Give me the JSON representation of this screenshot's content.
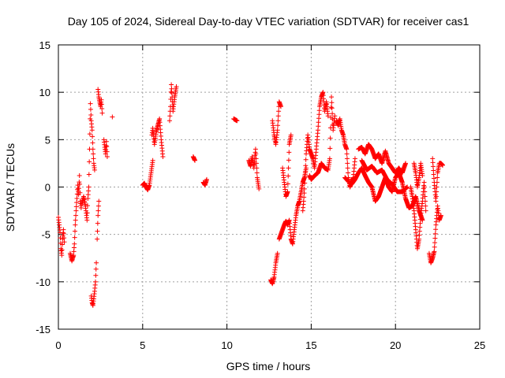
{
  "chart_data": {
    "type": "scatter",
    "title": "Day 105 of 2024, Sidereal Day-to-day VTEC variation (SDTVAR) for receiver cas1",
    "xlabel": "GPS time / hours",
    "ylabel": "SDTVAR / TECUs",
    "xlim": [
      0,
      25
    ],
    "ylim": [
      -15,
      15
    ],
    "xticks": [
      0,
      5,
      10,
      15,
      20,
      25
    ],
    "yticks": [
      -15,
      -10,
      -5,
      0,
      5,
      10,
      15
    ],
    "xtick_labels": [
      "0",
      "5",
      "10",
      "15",
      "20",
      "25"
    ],
    "ytick_labels": [
      "-15",
      "-10",
      "-5",
      "0",
      "5",
      "10",
      "15"
    ],
    "grid": true,
    "marker": "+",
    "color": "#ff0000",
    "segments": [
      [
        [
          0.0,
          -3.2
        ],
        [
          0.1,
          -4.8
        ],
        [
          0.15,
          -6.5
        ],
        [
          0.2,
          -7.2
        ],
        [
          0.25,
          -5.5
        ],
        [
          0.3,
          -4.5
        ],
        [
          0.35,
          -5.8
        ]
      ],
      [
        [
          0.7,
          -7.0
        ],
        [
          0.8,
          -7.8
        ],
        [
          0.9,
          -7.2
        ],
        [
          0.95,
          -6.0
        ],
        [
          1.0,
          -4.0
        ],
        [
          1.05,
          -2.5
        ],
        [
          1.1,
          -1.2
        ],
        [
          1.15,
          0.2
        ],
        [
          1.2,
          -0.8
        ],
        [
          1.25,
          1.2
        ],
        [
          1.3,
          -1.5
        ],
        [
          1.35,
          -2.2
        ]
      ],
      [
        [
          1.4,
          -1.8
        ],
        [
          1.5,
          -1.0
        ],
        [
          1.6,
          -2.0
        ],
        [
          1.7,
          -3.5
        ],
        [
          1.75,
          -1.2
        ],
        [
          1.8,
          0.0
        ],
        [
          1.85,
          4.0
        ],
        [
          1.9,
          8.8
        ],
        [
          1.95,
          7.0
        ],
        [
          2.0,
          6.0
        ],
        [
          2.05,
          4.0
        ],
        [
          2.1,
          2.5
        ],
        [
          2.15,
          1.8
        ]
      ],
      [
        [
          1.95,
          -11.5
        ],
        [
          2.0,
          -12.2
        ],
        [
          2.05,
          -12.5
        ],
        [
          2.1,
          -11.8
        ],
        [
          2.15,
          -11.0
        ],
        [
          2.2,
          -10.0
        ],
        [
          2.25,
          -8.0
        ]
      ],
      [
        [
          2.3,
          -5.5
        ],
        [
          2.35,
          -3.0
        ],
        [
          2.4,
          -1.5
        ]
      ],
      [
        [
          2.35,
          10.3
        ],
        [
          2.4,
          9.5
        ],
        [
          2.45,
          9.0
        ],
        [
          2.5,
          8.5
        ],
        [
          2.55,
          9.2
        ],
        [
          2.6,
          7.8
        ]
      ],
      [
        [
          2.7,
          5.0
        ],
        [
          2.75,
          4.2
        ],
        [
          2.8,
          3.5
        ],
        [
          2.85,
          4.8
        ],
        [
          2.9,
          3.2
        ]
      ],
      [
        [
          3.2,
          7.4
        ]
      ],
      [
        [
          5.0,
          0.2
        ],
        [
          5.1,
          0.4
        ],
        [
          5.2,
          0.0
        ],
        [
          5.3,
          -0.3
        ],
        [
          5.4,
          0.2
        ],
        [
          5.5,
          1.5
        ],
        [
          5.6,
          2.8
        ]
      ],
      [
        [
          5.55,
          5.5
        ],
        [
          5.6,
          6.2
        ],
        [
          5.7,
          4.5
        ],
        [
          5.8,
          5.8
        ],
        [
          5.9,
          6.5
        ],
        [
          6.0,
          7.2
        ],
        [
          6.1,
          5.0
        ],
        [
          6.2,
          3.2
        ]
      ],
      [
        [
          6.6,
          7.0
        ],
        [
          6.65,
          8.5
        ],
        [
          6.7,
          10.8
        ],
        [
          6.75,
          9.5
        ],
        [
          6.8,
          8.0
        ],
        [
          6.9,
          9.5
        ],
        [
          7.0,
          10.6
        ]
      ],
      [
        [
          8.0,
          3.2
        ],
        [
          8.1,
          2.8
        ]
      ],
      [
        [
          8.6,
          0.5
        ],
        [
          8.7,
          0.2
        ],
        [
          8.8,
          0.8
        ]
      ],
      [
        [
          10.4,
          7.2
        ],
        [
          10.6,
          7.0
        ]
      ],
      [
        [
          11.3,
          2.8
        ],
        [
          11.4,
          2.2
        ],
        [
          11.5,
          3.2
        ],
        [
          11.6,
          2.0
        ],
        [
          11.7,
          4.0
        ],
        [
          11.8,
          1.0
        ],
        [
          11.9,
          -0.2
        ]
      ],
      [
        [
          12.6,
          -9.8
        ],
        [
          12.7,
          -10.2
        ],
        [
          12.8,
          -9.5
        ],
        [
          12.9,
          -8.0
        ],
        [
          13.0,
          -7.0
        ]
      ],
      [
        [
          12.7,
          7.0
        ],
        [
          12.8,
          5.5
        ],
        [
          12.9,
          4.5
        ],
        [
          13.0,
          6.0
        ],
        [
          13.1,
          9.0
        ],
        [
          13.2,
          8.5
        ]
      ],
      [
        [
          13.1,
          -5.5
        ],
        [
          13.2,
          -5.0
        ],
        [
          13.3,
          -4.5
        ],
        [
          13.4,
          -4.0
        ],
        [
          13.5,
          -3.6
        ],
        [
          13.6,
          -4.0
        ],
        [
          13.7,
          -3.5
        ],
        [
          13.8,
          -5.5
        ],
        [
          13.9,
          -6.0
        ],
        [
          14.0,
          -4.5
        ],
        [
          14.1,
          -3.0
        ],
        [
          14.2,
          -2.0
        ],
        [
          14.3,
          -1.5
        ],
        [
          14.4,
          -0.5
        ],
        [
          14.5,
          0.5
        ],
        [
          14.6,
          1.0
        ],
        [
          14.7,
          2.0
        ]
      ],
      [
        [
          13.3,
          2.0
        ],
        [
          13.4,
          0.5
        ],
        [
          13.5,
          -1.0
        ],
        [
          13.6,
          -0.5
        ],
        [
          13.7,
          4.5
        ],
        [
          13.8,
          5.5
        ]
      ],
      [
        [
          14.5,
          -2.5
        ],
        [
          14.55,
          -1.5
        ],
        [
          14.6,
          -0.2
        ],
        [
          14.7,
          3.5
        ],
        [
          14.8,
          5.5
        ],
        [
          14.9,
          4.0
        ],
        [
          15.0,
          3.5
        ],
        [
          15.1,
          3.0
        ],
        [
          15.2,
          2.0
        ],
        [
          15.3,
          4.0
        ],
        [
          15.4,
          6.0
        ],
        [
          15.5,
          8.5
        ],
        [
          15.6,
          9.5
        ],
        [
          15.7,
          10.0
        ],
        [
          15.8,
          8.0
        ],
        [
          15.9,
          9.0
        ],
        [
          16.0,
          7.5
        ]
      ],
      [
        [
          14.9,
          1.2
        ],
        [
          15.0,
          0.8
        ],
        [
          15.2,
          1.2
        ],
        [
          15.4,
          1.5
        ],
        [
          15.6,
          2.5
        ],
        [
          15.8,
          2.0
        ],
        [
          16.0,
          1.8
        ],
        [
          16.1,
          3.0
        ],
        [
          16.2,
          9.5
        ],
        [
          16.3,
          6.0
        ],
        [
          16.4,
          7.5
        ]
      ],
      [
        [
          16.5,
          7.0
        ],
        [
          16.6,
          6.5
        ],
        [
          16.7,
          7.2
        ],
        [
          16.8,
          6.0
        ],
        [
          16.9,
          5.5
        ],
        [
          17.0,
          4.5
        ],
        [
          17.1,
          4.0
        ],
        [
          17.2,
          1.0
        ],
        [
          17.3,
          0.0
        ],
        [
          17.4,
          0.5
        ],
        [
          17.5,
          1.0
        ],
        [
          17.6,
          3.0
        ]
      ],
      [
        [
          17.0,
          1.0
        ],
        [
          17.2,
          0.6
        ],
        [
          17.4,
          0.3
        ],
        [
          17.6,
          0.8
        ],
        [
          17.8,
          1.5
        ],
        [
          18.0,
          2.0
        ],
        [
          18.2,
          1.2
        ],
        [
          18.4,
          0.5
        ],
        [
          18.6,
          0.0
        ],
        [
          18.8,
          -1.5
        ],
        [
          19.0,
          -1.0
        ],
        [
          19.2,
          0.0
        ],
        [
          19.4,
          1.0
        ],
        [
          19.6,
          0.0
        ],
        [
          19.8,
          -0.5
        ],
        [
          20.0,
          1.0
        ],
        [
          20.2,
          1.5
        ],
        [
          20.4,
          0.5
        ],
        [
          20.6,
          -1.2
        ],
        [
          20.8,
          -2.2
        ],
        [
          21.0,
          -2.0
        ],
        [
          21.2,
          -1.0
        ],
        [
          21.4,
          -2.5
        ],
        [
          21.6,
          -3.5
        ]
      ],
      [
        [
          17.8,
          4.0
        ],
        [
          18.0,
          4.2
        ],
        [
          18.2,
          3.5
        ],
        [
          18.4,
          4.5
        ],
        [
          18.6,
          4.0
        ],
        [
          18.8,
          3.0
        ],
        [
          19.0,
          3.5
        ],
        [
          19.2,
          2.5
        ],
        [
          19.4,
          3.8
        ],
        [
          19.6,
          2.5
        ],
        [
          19.8,
          2.0
        ],
        [
          20.0,
          1.5
        ],
        [
          20.2,
          2.0
        ],
        [
          20.4,
          1.5
        ],
        [
          20.6,
          2.5
        ]
      ],
      [
        [
          18.0,
          2.8
        ],
        [
          18.3,
          1.8
        ],
        [
          18.6,
          2.2
        ],
        [
          18.9,
          1.5
        ],
        [
          19.2,
          1.8
        ],
        [
          19.5,
          0.8
        ],
        [
          19.8,
          0.3
        ],
        [
          20.1,
          -0.5
        ],
        [
          20.4,
          -0.5
        ],
        [
          20.7,
          0.0
        ]
      ],
      [
        [
          20.9,
          0.0
        ],
        [
          21.0,
          -1.0
        ],
        [
          21.1,
          -2.5
        ],
        [
          21.2,
          -4.5
        ],
        [
          21.3,
          -6.5
        ],
        [
          21.4,
          -5.5
        ],
        [
          21.5,
          -3.0
        ],
        [
          21.6,
          -1.5
        ],
        [
          21.7,
          0.5
        ],
        [
          21.8,
          -2.5
        ]
      ],
      [
        [
          21.1,
          2.5
        ],
        [
          21.2,
          1.5
        ],
        [
          21.3,
          0.0
        ],
        [
          21.4,
          1.0
        ],
        [
          21.5,
          2.5
        ],
        [
          21.6,
          1.2
        ]
      ],
      [
        [
          22.0,
          -7.0
        ],
        [
          22.1,
          -8.0
        ],
        [
          22.2,
          -7.5
        ],
        [
          22.3,
          -6.8
        ],
        [
          22.4,
          -4.0
        ],
        [
          22.5,
          -2.0
        ],
        [
          22.6,
          -3.5
        ],
        [
          22.7,
          -3.0
        ]
      ],
      [
        [
          22.2,
          3.0
        ],
        [
          22.3,
          0.5
        ],
        [
          22.4,
          -1.5
        ],
        [
          22.5,
          1.5
        ],
        [
          22.6,
          2.5
        ],
        [
          22.7,
          2.5
        ],
        [
          22.8,
          2.3
        ]
      ]
    ]
  }
}
